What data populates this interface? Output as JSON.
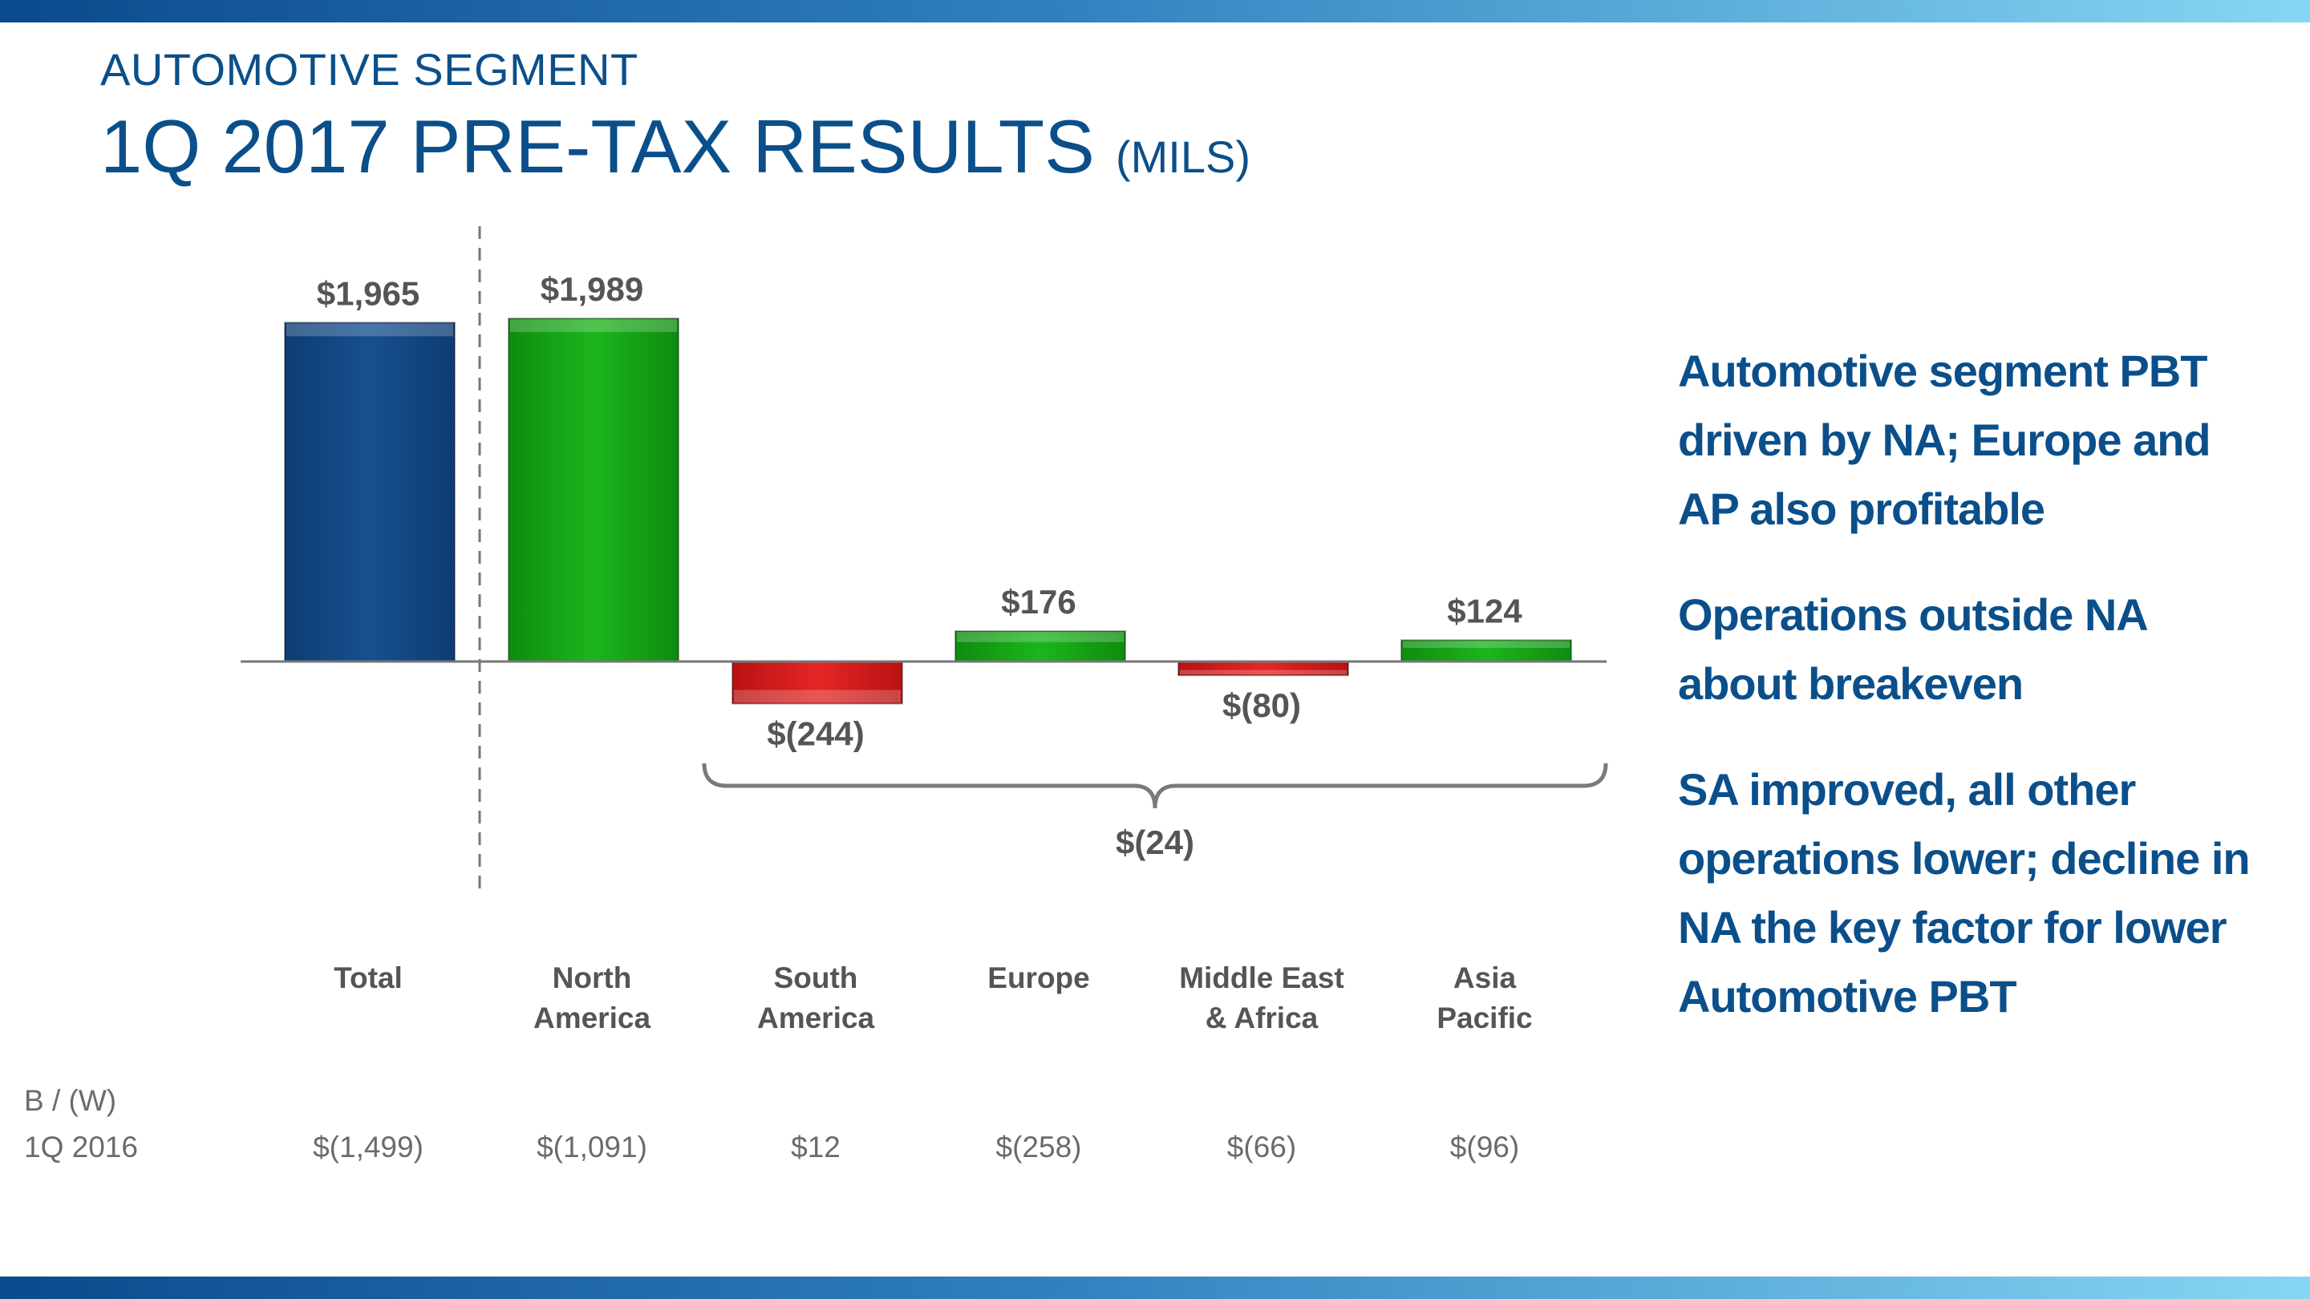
{
  "header": {
    "subtitle": "AUTOMOTIVE SEGMENT",
    "title": "1Q 2017 PRE-TAX RESULTS",
    "title_unit": "(MILS)"
  },
  "chart_data": {
    "type": "bar",
    "categories": [
      [
        "Total"
      ],
      [
        "North",
        "America"
      ],
      [
        "South",
        "America"
      ],
      [
        "Europe"
      ],
      [
        "Middle East",
        "& Africa"
      ],
      [
        "Asia",
        "Pacific"
      ]
    ],
    "values": [
      1965,
      1989,
      -244,
      176,
      -80,
      124
    ],
    "value_labels": [
      "$1,965",
      "$1,989",
      "$(244)",
      "$176",
      "$(80)",
      "$124"
    ],
    "colors": [
      "#114a86",
      "#16a516",
      "#d61a1a",
      "#16a516",
      "#d61a1a",
      "#16a516"
    ],
    "bracket_label": "$(24)",
    "ylim": [
      -300,
      2100
    ],
    "comparison": {
      "label_line1": "B / (W)",
      "label_line2": "1Q 2016",
      "values": [
        "$(1,499)",
        "$(1,091)",
        "$12",
        "$(258)",
        "$(66)",
        "$(96)"
      ]
    }
  },
  "bullets": [
    "Automotive segment PBT driven by NA; Europe and AP also profitable",
    "Operations outside NA about breakeven",
    "SA improved, all other operations lower; decline in NA the key factor for lower Automotive PBT"
  ]
}
